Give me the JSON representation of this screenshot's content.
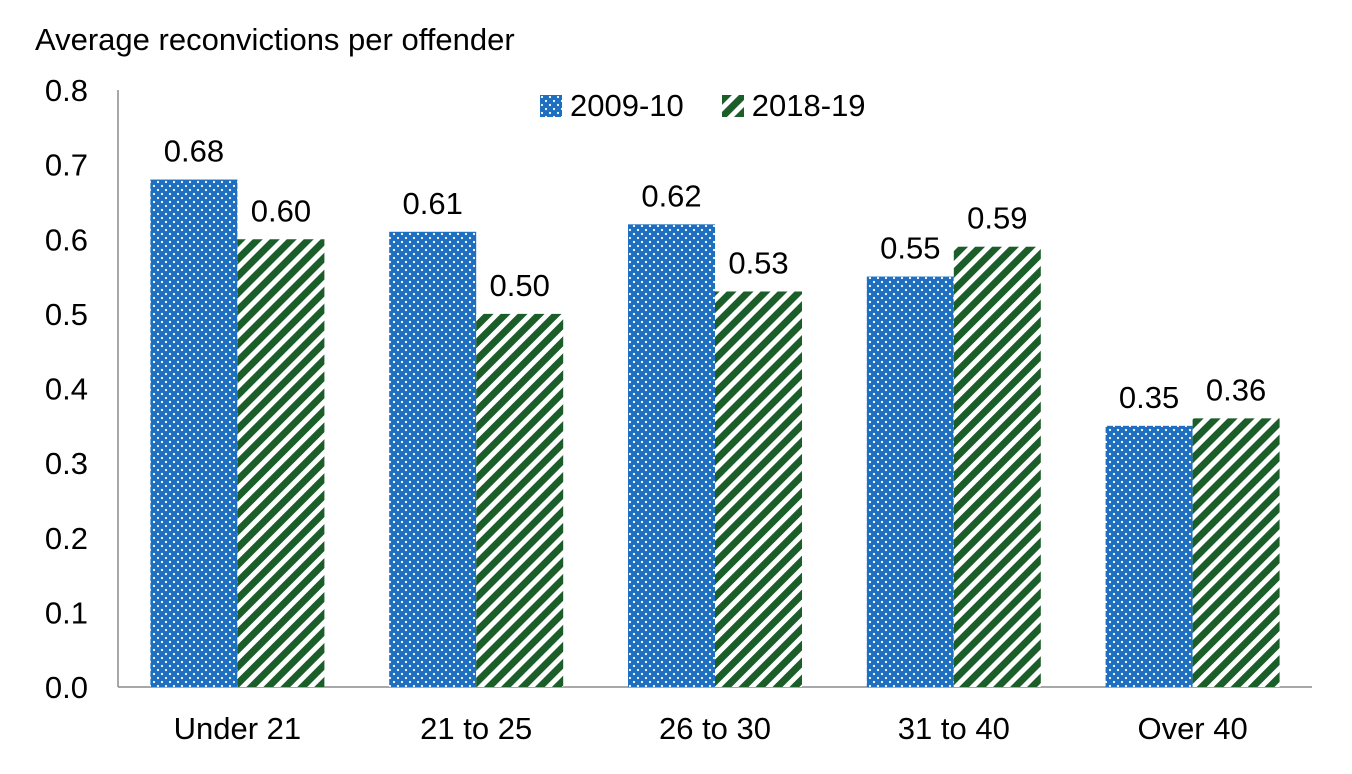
{
  "chart_data": {
    "type": "bar",
    "title": "",
    "ylabel": "Average reconvictions per offender",
    "xlabel": "",
    "categories": [
      "Under 21",
      "21 to 25",
      "26 to 30",
      "31 to 40",
      "Over 40"
    ],
    "series": [
      {
        "name": "2009-10",
        "values": [
          0.68,
          0.61,
          0.62,
          0.55,
          0.35
        ],
        "labels": [
          "0.68",
          "0.61",
          "0.62",
          "0.55",
          "0.35"
        ],
        "color": "#1f6fc0",
        "pattern": "dots"
      },
      {
        "name": "2018-19",
        "values": [
          0.6,
          0.5,
          0.53,
          0.59,
          0.36
        ],
        "labels": [
          "0.60",
          "0.50",
          "0.53",
          "0.59",
          "0.36"
        ],
        "color": "#1b5e2a",
        "pattern": "diagonal-stripes"
      }
    ],
    "ylim": [
      0,
      0.8
    ],
    "yticks": [
      "0.0",
      "0.1",
      "0.2",
      "0.3",
      "0.4",
      "0.5",
      "0.6",
      "0.7",
      "0.8"
    ],
    "grid": false,
    "legend_position": "top-center"
  }
}
